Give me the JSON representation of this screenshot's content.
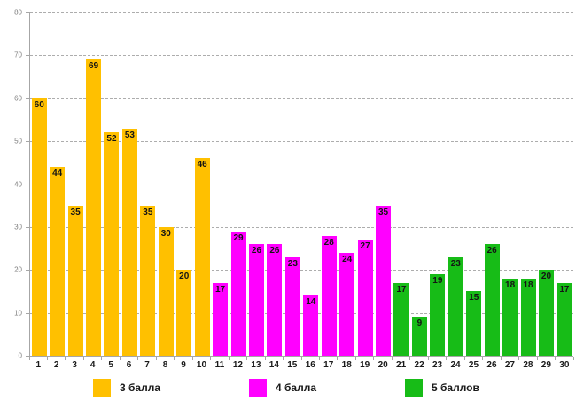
{
  "chart_data": {
    "type": "bar",
    "title": "",
    "xlabel": "",
    "ylabel": "",
    "categories": [
      "1",
      "2",
      "3",
      "4",
      "5",
      "6",
      "7",
      "8",
      "9",
      "10",
      "11",
      "12",
      "13",
      "14",
      "15",
      "16",
      "17",
      "18",
      "19",
      "20",
      "21",
      "22",
      "23",
      "24",
      "25",
      "26",
      "27",
      "28",
      "29",
      "30"
    ],
    "values": [
      60,
      44,
      35,
      69,
      52,
      53,
      35,
      30,
      20,
      46,
      17,
      29,
      26,
      26,
      23,
      14,
      28,
      24,
      27,
      35,
      17,
      9,
      19,
      23,
      15,
      26,
      18,
      18,
      20,
      17
    ],
    "groups": [
      {
        "name": "3 балла",
        "color": "#FFC000",
        "from": 1,
        "to": 10
      },
      {
        "name": "4 балла",
        "color": "#FF00FF",
        "from": 11,
        "to": 20
      },
      {
        "name": "5 баллов",
        "color": "#17BC17",
        "from": 21,
        "to": 30
      }
    ],
    "ylim": [
      0,
      80
    ],
    "ytick_step": 10,
    "grid": "horizontal-dashed",
    "legend_position": "bottom",
    "value_labels": "inside-top",
    "colors": {
      "axis": "#A6A6A6",
      "gridline": "#ADADAD",
      "ytick_label": "#808080",
      "value_label": "#141414"
    }
  }
}
